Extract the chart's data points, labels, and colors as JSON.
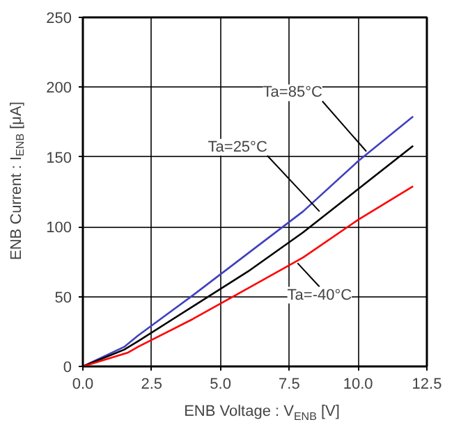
{
  "chart_data": {
    "type": "line",
    "xlabel": "ENB Voltage : V$_{ENB}$ [V]",
    "ylabel": "ENB Current : I$_{ENB}$ [μA]",
    "xlim": [
      0,
      12.5
    ],
    "xticks": [
      {
        "value": 0,
        "label": "0.0"
      },
      {
        "value": 2.5,
        "label": "2.5"
      },
      {
        "value": 5,
        "label": "5.0"
      },
      {
        "value": 7.5,
        "label": "7.5"
      },
      {
        "value": 10,
        "label": "10.0"
      },
      {
        "value": 12.5,
        "label": "12.5"
      }
    ],
    "ylim": [
      0,
      250
    ],
    "yticks": [
      0,
      50,
      100,
      150,
      200,
      250
    ],
    "grid": true,
    "series": [
      {
        "color": "#4040c0",
        "x": [
          0,
          1.5,
          2,
          4,
          6,
          8,
          10,
          12
        ],
        "values": [
          0,
          14,
          22,
          51,
          81,
          111,
          147,
          179
        ]
      },
      {
        "color": "#000000",
        "x": [
          0,
          1.5,
          2,
          4,
          6,
          8,
          10,
          12
        ],
        "values": [
          0,
          12,
          18,
          43,
          68,
          96,
          127,
          158
        ]
      },
      {
        "color": "#ff0000",
        "x": [
          0,
          1.65,
          2,
          4,
          6,
          8,
          10,
          12
        ],
        "values": [
          0,
          10,
          14,
          34,
          56,
          78,
          105,
          129
        ]
      }
    ],
    "annotations": [
      {
        "text": "Ta=85°C",
        "x": 10.3,
        "y": 154
      },
      {
        "text": "Ta=25°C",
        "x": 8.6,
        "y": 111
      },
      {
        "text": "Ta=-40°C",
        "x": 7.8,
        "y": 74
      }
    ]
  }
}
